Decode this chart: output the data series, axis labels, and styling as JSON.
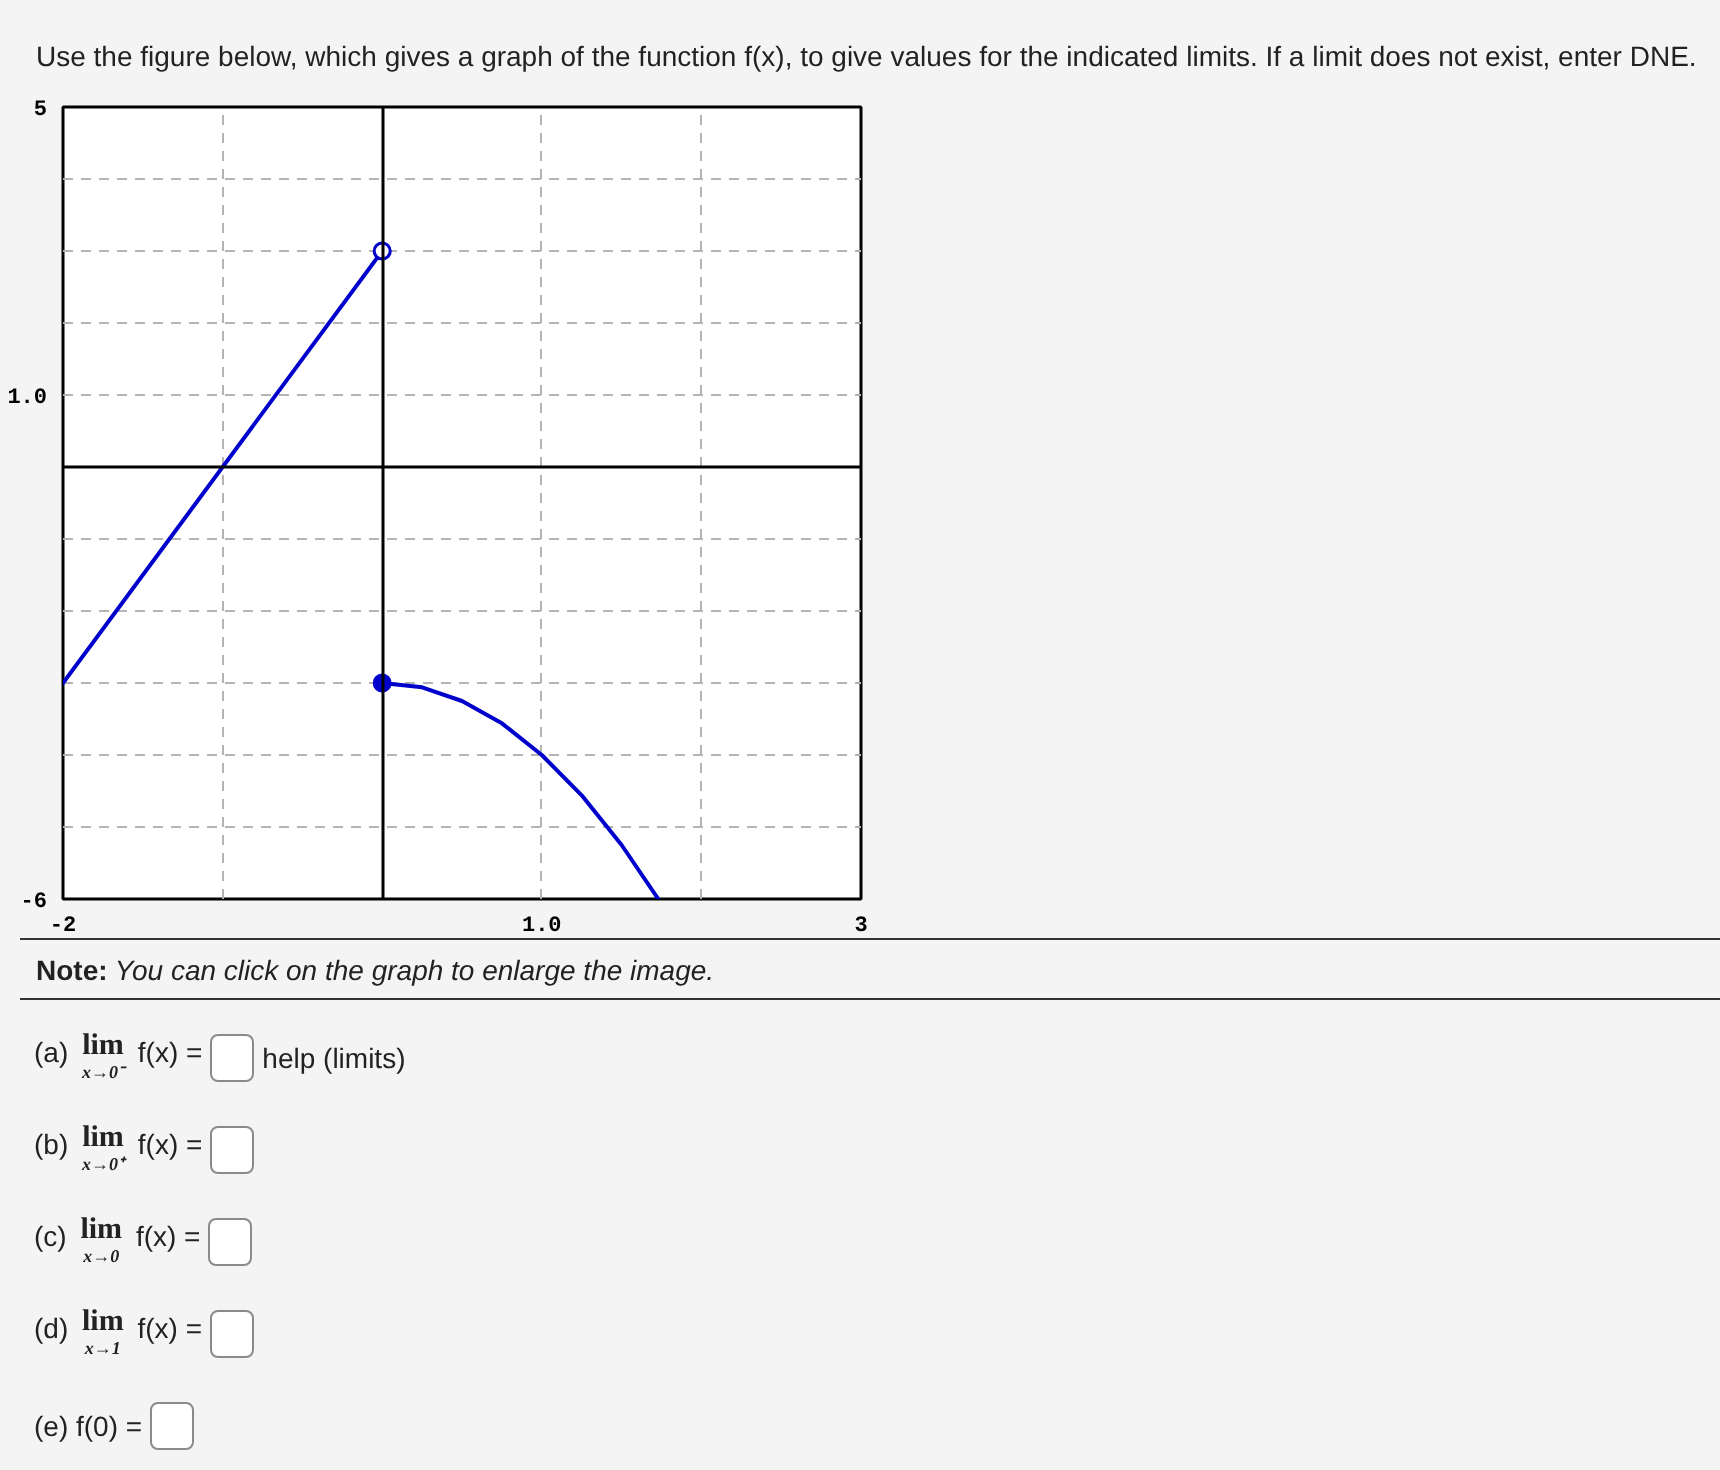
{
  "chart_data": {
    "type": "line",
    "title": "Use the figure below, which gives a graph of the function f(x), to give values for the indicated limits. If a limit does not exist, enter DNE.",
    "xlim": [
      -2,
      3
    ],
    "ylim": [
      -6,
      5
    ],
    "xticks": [
      -2,
      {
        "value": -1,
        "label": null
      },
      {
        "value": 0,
        "label": null
      },
      {
        "value": 1,
        "label": "1.0"
      },
      {
        "value": 2,
        "label": null
      },
      3
    ],
    "yticks": [
      -6,
      {
        "value": -5,
        "label": null
      },
      {
        "value": -4,
        "label": null
      },
      {
        "value": -3,
        "label": null
      },
      {
        "value": -2,
        "label": null
      },
      {
        "value": -1,
        "label": null
      },
      {
        "value": 0,
        "label": null
      },
      {
        "value": 1,
        "label": "1.0"
      },
      {
        "value": 2,
        "label": null
      },
      {
        "value": 3,
        "label": null
      },
      {
        "value": 4,
        "label": null
      },
      5
    ],
    "grid": true,
    "series": [
      {
        "color": "#0000cc",
        "x": [
          -2,
          0
        ],
        "values": [
          -3,
          3
        ]
      },
      {
        "type": "scatter",
        "marker": "circle",
        "color": "#ffffff",
        "x": [
          0
        ],
        "values": [
          3
        ]
      },
      {
        "color": "#0000cc",
        "x": [
          0,
          0.25,
          0.5,
          0.75,
          1,
          1.25,
          1.5,
          1.73
        ],
        "values": [
          -3,
          -3.06,
          -3.25,
          -3.56,
          -4,
          -4.56,
          -5.25,
          -6
        ]
      },
      {
        "type": "scatter",
        "marker": "circle",
        "color": "#0000cc",
        "x": [
          0
        ],
        "values": [
          -3
        ]
      }
    ],
    "annotations": [
      "Note: You can click on the graph to enlarge the image.",
      "(a) lim$_{x→0⁻}$ f(x) =",
      "help (limits)",
      "(b) lim$_{x→0⁺}$ f(x) =",
      "(c) lim$_{x→0}$ f(x) =",
      "(d) lim$_{x→1}$ f(x) =",
      "(e) f(0) ="
    ]
  }
}
